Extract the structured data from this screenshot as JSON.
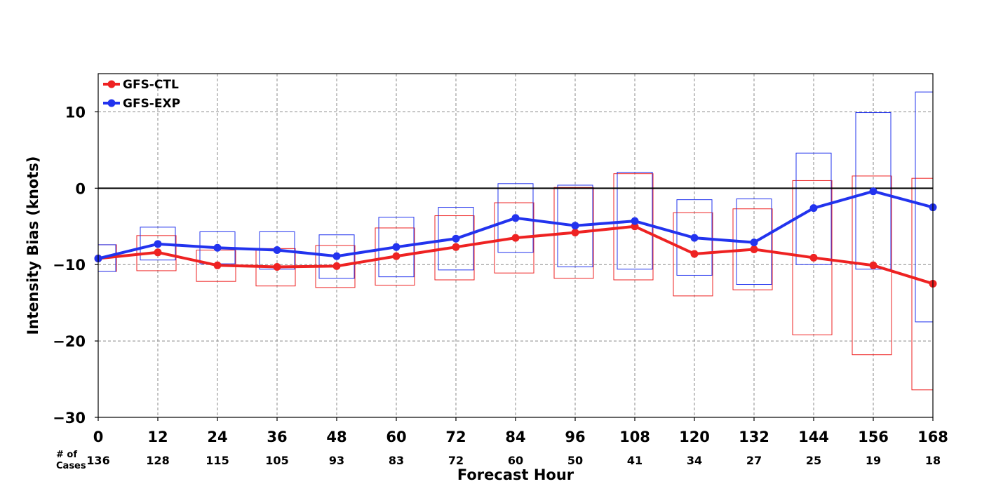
{
  "chart_data": {
    "type": "line",
    "xlabel": "Forecast Hour",
    "ylabel": "Intensity Bias (knots)",
    "xlim": [
      0,
      168
    ],
    "ylim": [
      -30,
      15
    ],
    "xticks": [
      0,
      12,
      24,
      36,
      48,
      60,
      72,
      84,
      96,
      108,
      120,
      132,
      144,
      156,
      168
    ],
    "yticks": [
      -30,
      -20,
      -10,
      0,
      10
    ],
    "grid": true,
    "legend_position": "top-left",
    "cases_label_line1": "# of",
    "cases_label_line2": "Cases",
    "cases": [
      136,
      128,
      115,
      105,
      93,
      83,
      72,
      60,
      50,
      41,
      34,
      27,
      25,
      19,
      18
    ],
    "series": [
      {
        "name": "GFS-CTL",
        "color": "#ee2222",
        "values": [
          -9.2,
          -8.4,
          -10.1,
          -10.3,
          -10.2,
          -8.9,
          -7.7,
          -6.5,
          -5.8,
          -5.0,
          -8.6,
          -8.0,
          -9.1,
          -10.1,
          -12.5
        ],
        "ci_low": [
          -10.9,
          -10.8,
          -12.2,
          -12.8,
          -13.0,
          -12.7,
          -12.0,
          -11.1,
          -11.8,
          -12.0,
          -14.1,
          -13.3,
          -19.2,
          -21.8,
          -26.4
        ],
        "ci_high": [
          -7.4,
          -6.2,
          -8.1,
          -7.9,
          -7.5,
          -5.2,
          -3.6,
          -1.9,
          0.1,
          1.9,
          -3.2,
          -2.7,
          1.0,
          1.6,
          1.3
        ]
      },
      {
        "name": "GFS-EXP",
        "color": "#2233ee",
        "values": [
          -9.2,
          -7.3,
          -7.8,
          -8.1,
          -8.9,
          -7.7,
          -6.6,
          -3.9,
          -4.9,
          -4.3,
          -6.5,
          -7.1,
          -2.6,
          -0.4,
          -2.5
        ],
        "ci_low": [
          -10.9,
          -9.4,
          -9.9,
          -10.6,
          -11.8,
          -11.6,
          -10.7,
          -8.4,
          -10.3,
          -10.6,
          -11.4,
          -12.6,
          -10.0,
          -10.6,
          -17.5
        ],
        "ci_high": [
          -7.4,
          -5.1,
          -5.7,
          -5.7,
          -6.1,
          -3.8,
          -2.5,
          0.6,
          0.4,
          2.1,
          -1.5,
          -1.4,
          4.6,
          9.9,
          12.6
        ]
      }
    ]
  }
}
